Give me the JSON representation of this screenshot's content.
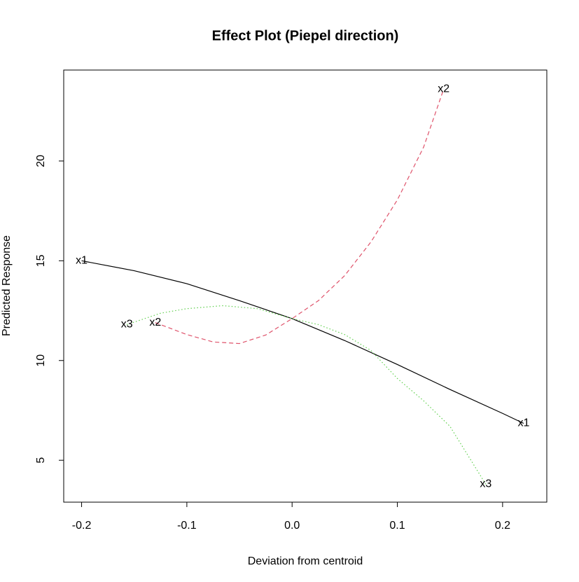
{
  "chart_data": {
    "type": "line",
    "title": "Effect Plot (Piepel direction)",
    "x_label": "Deviation from centroid",
    "y_label": "Predicted Response",
    "xlim": [
      -0.217,
      0.242
    ],
    "ylim": [
      2.9,
      24.56
    ],
    "xticks": [
      -0.2,
      -0.1,
      {
        "value": 0,
        "label": "0.0"
      },
      0.1,
      0.2
    ],
    "yticks": [
      5,
      10,
      15,
      20
    ],
    "series": [
      {
        "name": "x1",
        "color": "#000000",
        "dash": "solid",
        "x": [
          -0.2,
          -0.15,
          -0.1,
          -0.05,
          0,
          0.05,
          0.1,
          0.15,
          0.2,
          0.22
        ],
        "values": [
          15.0,
          14.5,
          13.85,
          13.0,
          12.1,
          11.0,
          9.8,
          8.55,
          7.35,
          6.85
        ]
      },
      {
        "name": "x2",
        "color": "#DF536B",
        "dash": "dashed",
        "x": [
          -0.13,
          -0.1,
          -0.075,
          -0.05,
          -0.025,
          0,
          0.025,
          0.05,
          0.075,
          0.1,
          0.125,
          0.144
        ],
        "values": [
          11.9,
          11.3,
          10.93,
          10.85,
          11.28,
          12.1,
          13.0,
          14.26,
          15.95,
          18.05,
          20.7,
          23.6
        ]
      },
      {
        "name": "x3",
        "color": "#61D04F",
        "dash": "dotted",
        "x": [
          -0.157,
          -0.125,
          -0.1,
          -0.066,
          -0.033,
          0,
          0.025,
          0.05,
          0.075,
          0.1,
          0.125,
          0.15,
          0.184
        ],
        "values": [
          11.8,
          12.37,
          12.6,
          12.75,
          12.6,
          12.1,
          11.8,
          11.3,
          10.5,
          9.1,
          7.98,
          6.7,
          3.8
        ]
      }
    ]
  }
}
